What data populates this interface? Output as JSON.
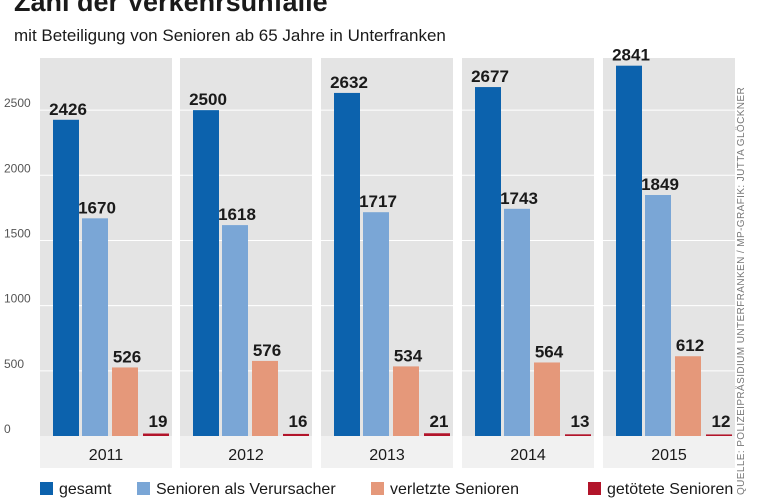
{
  "colors": {
    "panel": "#e4e4e4",
    "label_strip": "#f1f1f1",
    "gridline": "#ffffff",
    "text": "#1a1a1a",
    "axis_text": "#555555"
  },
  "chart_data": {
    "type": "bar",
    "title": "Zahl der Verkehrsunfälle",
    "subtitle": "mit Beteiligung von Senioren ab 65 Jahre in Unterfranken",
    "categories": [
      "2011",
      "2012",
      "2013",
      "2014",
      "2015"
    ],
    "yticks": [
      0,
      500,
      1000,
      1500,
      2000,
      2500
    ],
    "ylim": [
      0,
      2900
    ],
    "grid": true,
    "legend_position": "bottom",
    "series": [
      {
        "name": "gesamt",
        "color": "#0c62ad",
        "values": [
          2426,
          2500,
          2632,
          2677,
          2841
        ]
      },
      {
        "name": "Senioren als Verursacher",
        "color": "#7aa6d6",
        "values": [
          1670,
          1618,
          1717,
          1743,
          1849
        ]
      },
      {
        "name": "verletzte Senioren",
        "color": "#e5987a",
        "values": [
          526,
          576,
          534,
          564,
          612
        ]
      },
      {
        "name": "getötete Senioren",
        "color": "#b2142a",
        "values": [
          19,
          16,
          21,
          13,
          12
        ]
      }
    ],
    "source": "QUELLE: POLIZEIPRÄSIDIUM UNTERFRANKEN / MP-GRAFIK: JUTTA GLÖCKNER"
  }
}
